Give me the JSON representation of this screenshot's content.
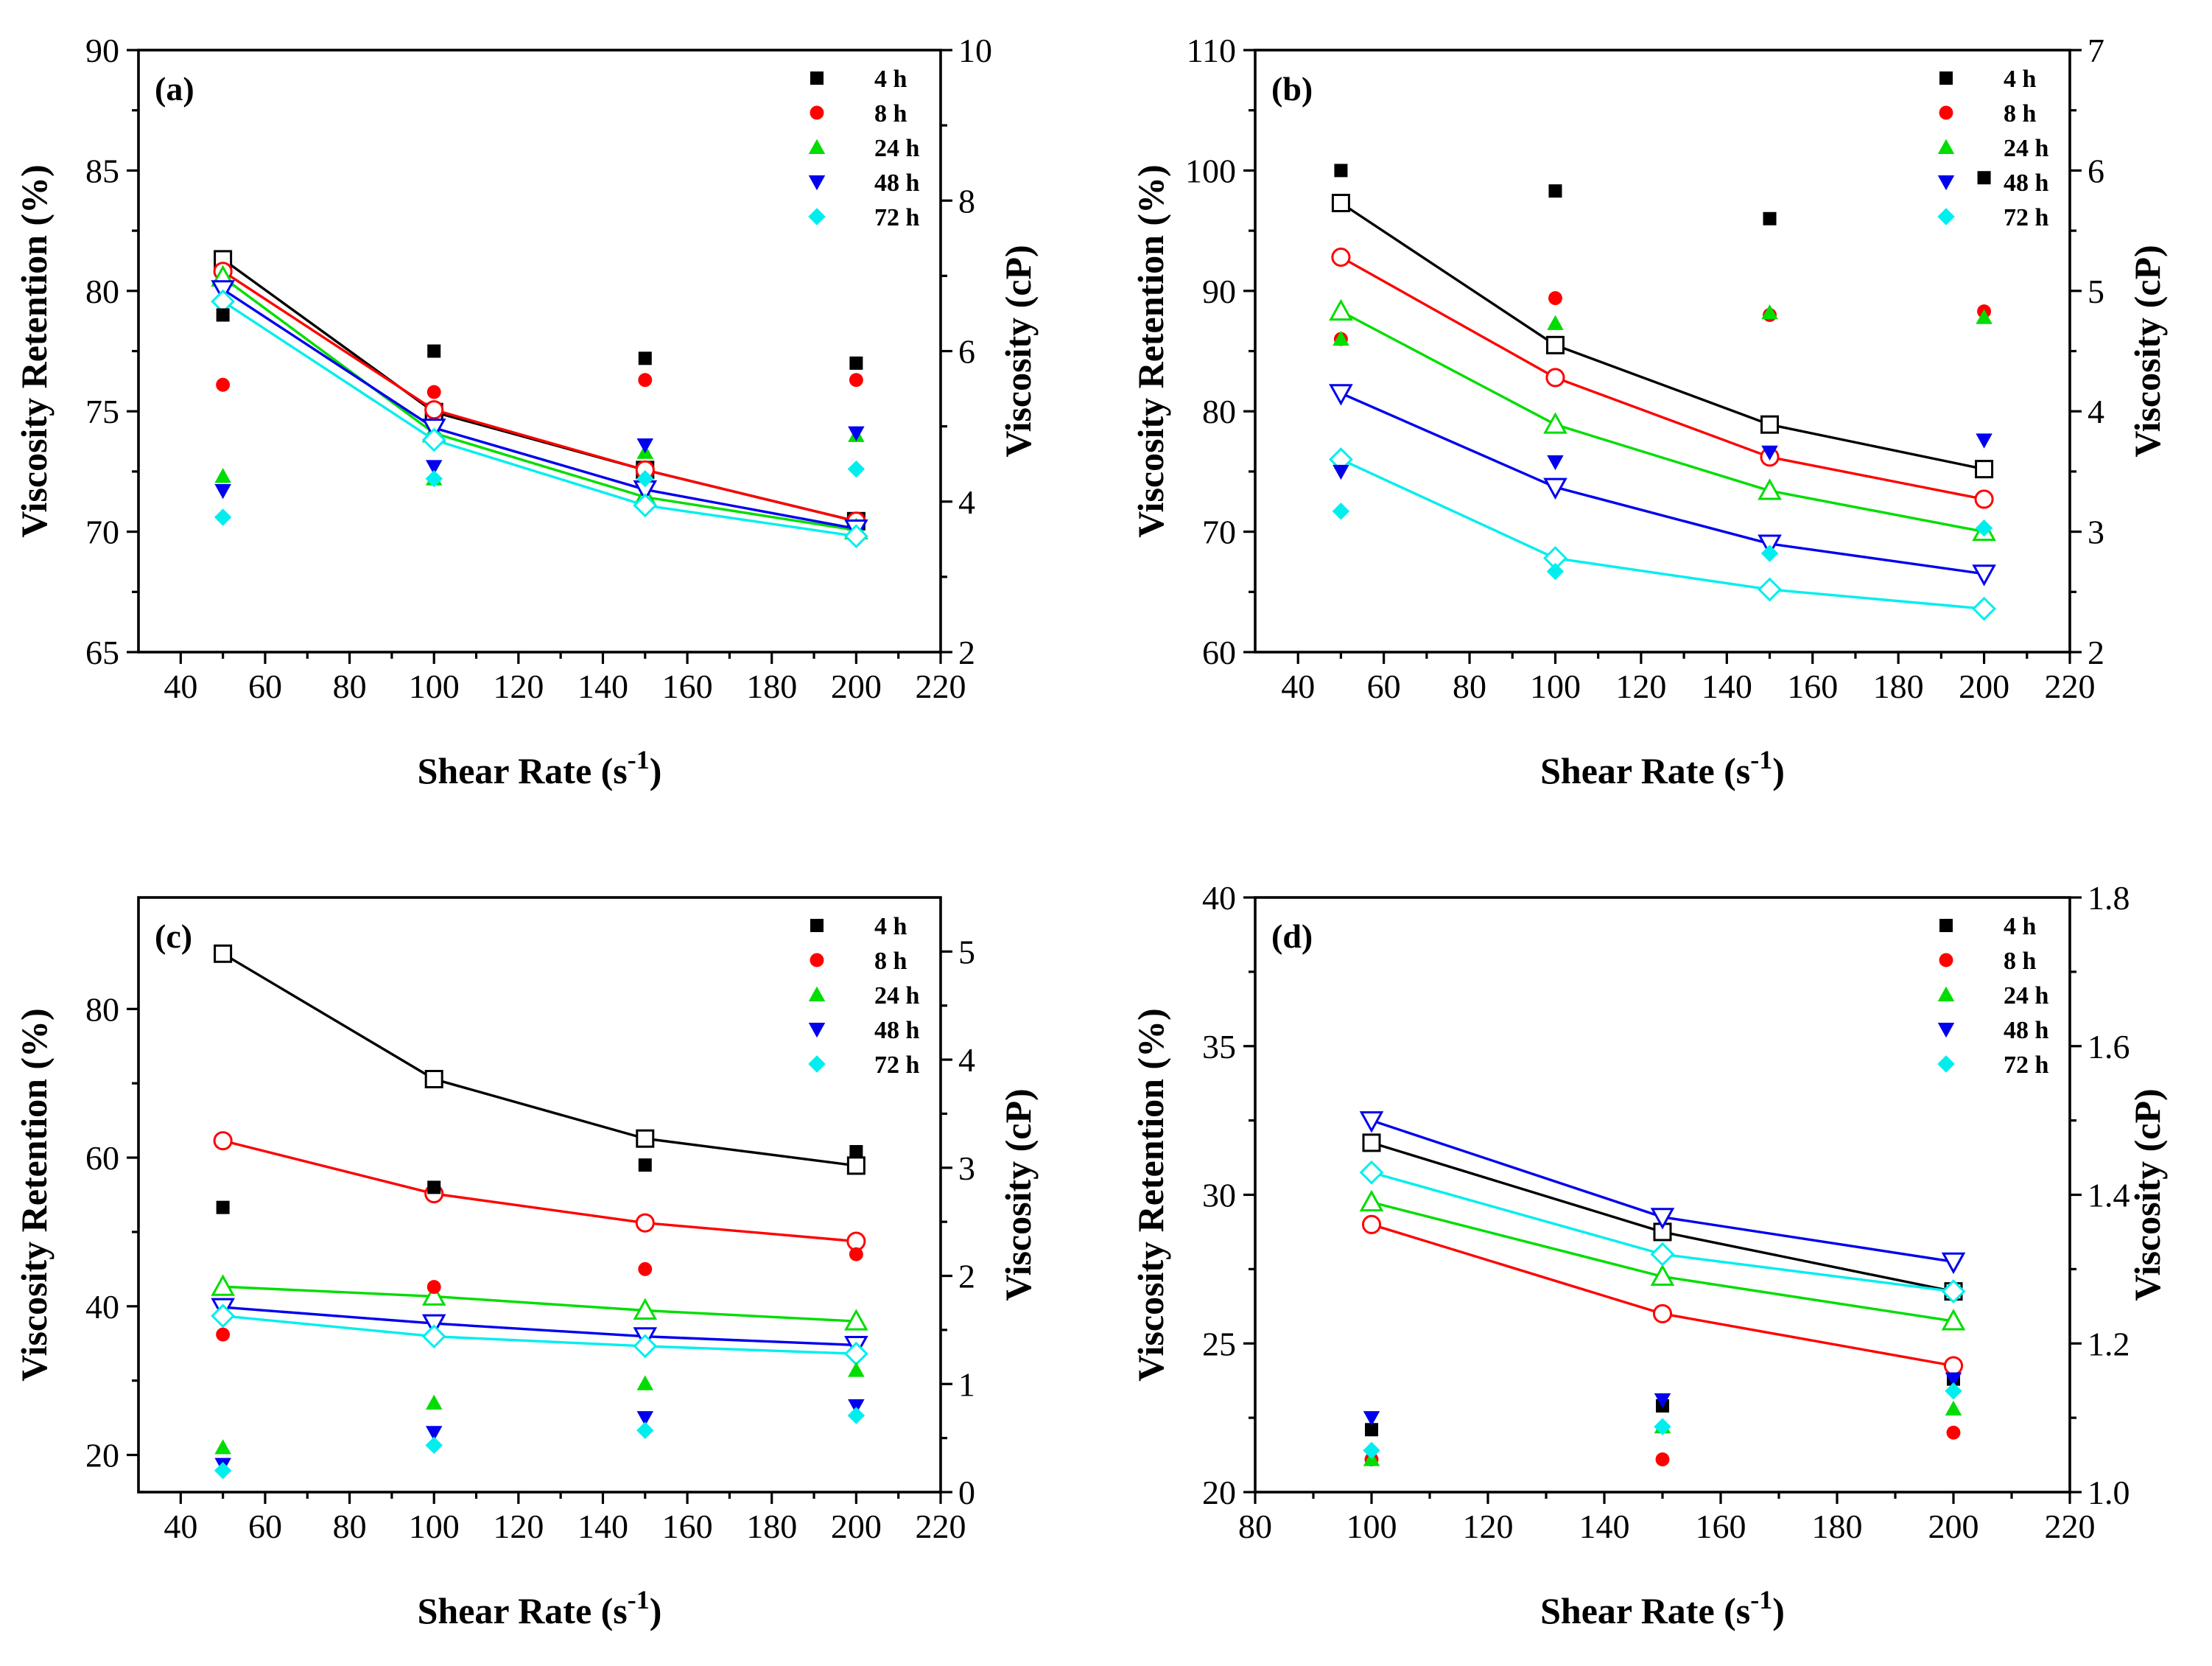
{
  "chart_data": [
    {
      "type": "line",
      "panel_label": "(a)",
      "xlabel": "Shear Rate (s",
      "xlabel_sup": "-1",
      "xlabel_tail": ")",
      "ylabel": "Viscosity Retention (%)",
      "y2label": "Viscosity (cP)",
      "xlim": [
        30,
        220
      ],
      "xticks": [
        40,
        60,
        80,
        100,
        120,
        140,
        160,
        180,
        200,
        220
      ],
      "ylim": [
        65,
        90
      ],
      "yticks": [
        65,
        70,
        75,
        80,
        85,
        90
      ],
      "y2lim": [
        2,
        10
      ],
      "y2ticks": [
        2,
        4,
        6,
        8,
        10
      ],
      "x": [
        50,
        100,
        150,
        200
      ],
      "legend": [
        "4 h",
        "8 h",
        "24 h",
        "48 h",
        "72 h"
      ],
      "legend_position": "top-right",
      "colors": [
        "#000000",
        "#ff0000",
        "#00dd00",
        "#0000ee",
        "#00eeee"
      ],
      "series": [
        {
          "name": "4 h",
          "retention": [
            79.0,
            77.5,
            77.2,
            77.0
          ],
          "viscosity": [
            7.22,
            5.19,
            4.42,
            3.74
          ]
        },
        {
          "name": "8 h",
          "retention": [
            76.1,
            75.8,
            76.3,
            76.3
          ],
          "viscosity": [
            7.06,
            5.22,
            4.42,
            3.74
          ]
        },
        {
          "name": "24 h",
          "retention": [
            72.3,
            72.2,
            73.3,
            74.0
          ],
          "viscosity": [
            6.98,
            4.91,
            4.06,
            3.62
          ]
        },
        {
          "name": "48 h",
          "retention": [
            71.7,
            72.7,
            73.6,
            74.1
          ],
          "viscosity": [
            6.82,
            4.98,
            4.16,
            3.64
          ]
        },
        {
          "name": "72 h",
          "retention": [
            70.6,
            72.2,
            72.2,
            72.6
          ],
          "viscosity": [
            6.66,
            4.82,
            3.95,
            3.54
          ]
        }
      ]
    },
    {
      "type": "line",
      "panel_label": "(b)",
      "xlabel": "Shear Rate (s",
      "xlabel_sup": "-1",
      "xlabel_tail": ")",
      "ylabel": "Viscosity Retention (%)",
      "y2label": "Viscosity (cP)",
      "xlim": [
        30,
        220
      ],
      "xticks": [
        40,
        60,
        80,
        100,
        120,
        140,
        160,
        180,
        200,
        220
      ],
      "ylim": [
        60,
        110
      ],
      "yticks": [
        60,
        70,
        80,
        90,
        100,
        110
      ],
      "y2lim": [
        2,
        7
      ],
      "y2ticks": [
        2,
        3,
        4,
        5,
        6,
        7
      ],
      "x": [
        50,
        100,
        150,
        200
      ],
      "legend": [
        "4 h",
        "8 h",
        "24 h",
        "48 h",
        "72 h"
      ],
      "legend_position": "top-right",
      "colors": [
        "#000000",
        "#ff0000",
        "#00dd00",
        "#0000ee",
        "#00eeee"
      ],
      "series": [
        {
          "name": "4 h",
          "retention": [
            100.0,
            98.3,
            96.0,
            99.4
          ],
          "viscosity": [
            5.73,
            4.55,
            3.89,
            3.52
          ]
        },
        {
          "name": "8 h",
          "retention": [
            86.0,
            89.4,
            88.0,
            88.3
          ],
          "viscosity": [
            5.28,
            4.28,
            3.62,
            3.27
          ]
        },
        {
          "name": "24 h",
          "retention": [
            86.0,
            87.3,
            88.2,
            87.8
          ],
          "viscosity": [
            4.83,
            3.89,
            3.34,
            3.0
          ]
        },
        {
          "name": "48 h",
          "retention": [
            75.0,
            75.8,
            76.6,
            77.6
          ],
          "viscosity": [
            4.15,
            3.37,
            2.9,
            2.65
          ]
        },
        {
          "name": "72 h",
          "retention": [
            71.7,
            66.7,
            68.2,
            70.3
          ],
          "viscosity": [
            3.6,
            2.78,
            2.52,
            2.36
          ]
        }
      ]
    },
    {
      "type": "line",
      "panel_label": "(c)",
      "xlabel": "Shear Rate (s",
      "xlabel_sup": "-1",
      "xlabel_tail": ")",
      "ylabel": "Viscosity Retention (%)",
      "y2label": "Viscosity (cP)",
      "xlim": [
        30,
        220
      ],
      "xticks": [
        40,
        60,
        80,
        100,
        120,
        140,
        160,
        180,
        200,
        220
      ],
      "ylim": [
        15,
        95
      ],
      "yticks": [
        20,
        40,
        60,
        80
      ],
      "y2lim": [
        0,
        5.5
      ],
      "y2ticks": [
        0,
        1,
        2,
        3,
        4,
        5
      ],
      "x": [
        50,
        100,
        150,
        200
      ],
      "legend": [
        "4 h",
        "8 h",
        "24 h",
        "48 h",
        "72 h"
      ],
      "legend_position": "top-right",
      "colors": [
        "#000000",
        "#ff0000",
        "#00dd00",
        "#0000ee",
        "#00eeee"
      ],
      "series": [
        {
          "name": "4 h",
          "retention": [
            53.3,
            56.0,
            59.0,
            60.8
          ],
          "viscosity": [
            4.98,
            3.82,
            3.27,
            3.02
          ]
        },
        {
          "name": "8 h",
          "retention": [
            36.2,
            42.6,
            45.0,
            47.0
          ],
          "viscosity": [
            3.25,
            2.76,
            2.49,
            2.32
          ]
        },
        {
          "name": "24 h",
          "retention": [
            21.0,
            27.0,
            29.6,
            31.4
          ],
          "viscosity": [
            1.9,
            1.81,
            1.68,
            1.58
          ]
        },
        {
          "name": "48 h",
          "retention": [
            18.7,
            23.0,
            25.0,
            26.6
          ],
          "viscosity": [
            1.71,
            1.56,
            1.44,
            1.36
          ]
        },
        {
          "name": "72 h",
          "retention": [
            17.9,
            21.3,
            23.3,
            25.3
          ],
          "viscosity": [
            1.63,
            1.44,
            1.35,
            1.28
          ]
        }
      ]
    },
    {
      "type": "line",
      "panel_label": "(d)",
      "xlabel": "Shear Rate (s",
      "xlabel_sup": "-1",
      "xlabel_tail": ")",
      "ylabel": "Viscosity Retention (%)",
      "y2label": "Viscosity (cP)",
      "xlim": [
        80,
        220
      ],
      "xticks": [
        80,
        100,
        120,
        140,
        160,
        180,
        200,
        220
      ],
      "ylim": [
        20,
        40
      ],
      "yticks": [
        20,
        25,
        30,
        35,
        40
      ],
      "y2lim": [
        1.0,
        1.8
      ],
      "y2ticks": [
        1.0,
        1.2,
        1.4,
        1.6,
        1.8
      ],
      "x": [
        100,
        150,
        200
      ],
      "legend": [
        "4 h",
        "8 h",
        "24 h",
        "48 h",
        "72 h"
      ],
      "legend_position": "top-right",
      "colors": [
        "#000000",
        "#ff0000",
        "#00dd00",
        "#0000ee",
        "#00eeee"
      ],
      "series": [
        {
          "name": "4 h",
          "retention": [
            22.1,
            22.9,
            23.8
          ],
          "viscosity": [
            1.47,
            1.35,
            1.27
          ]
        },
        {
          "name": "8 h",
          "retention": [
            21.1,
            21.1,
            22.0
          ],
          "viscosity": [
            1.36,
            1.24,
            1.17
          ]
        },
        {
          "name": "24 h",
          "retention": [
            21.1,
            22.2,
            22.8
          ],
          "viscosity": [
            1.39,
            1.29,
            1.23
          ]
        },
        {
          "name": "48 h",
          "retention": [
            22.5,
            23.1,
            23.8
          ],
          "viscosity": [
            1.5,
            1.37,
            1.31
          ]
        },
        {
          "name": "72 h",
          "retention": [
            21.4,
            22.2,
            23.4
          ],
          "viscosity": [
            1.43,
            1.32,
            1.27
          ]
        }
      ]
    }
  ]
}
